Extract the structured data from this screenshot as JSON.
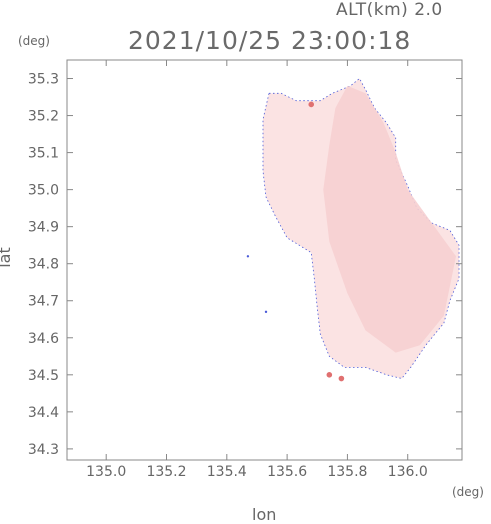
{
  "header": {
    "altitude_label": "ALT(km) 2.0",
    "timestamp": "2021/10/25 23:00:18"
  },
  "chart_data": {
    "type": "heatmap",
    "title": "2021/10/25 23:00:18",
    "subtitle": "ALT(km) 2.0",
    "xlabel": "lon",
    "ylabel": "lat",
    "x_unit": "(deg)",
    "y_unit": "(deg)",
    "xlim": [
      134.87,
      136.18
    ],
    "ylim": [
      34.27,
      35.35
    ],
    "x_ticks": [
      135.0,
      135.2,
      135.4,
      135.6,
      135.8,
      136.0
    ],
    "x_tick_labels": [
      "135.0",
      "135.2",
      "135.4",
      "135.6",
      "135.8",
      "136.0"
    ],
    "y_ticks": [
      34.3,
      34.4,
      34.5,
      34.6,
      34.7,
      34.8,
      34.9,
      35.0,
      35.1,
      35.2,
      35.3
    ],
    "y_tick_labels": [
      "34.3",
      "34.4",
      "34.5",
      "34.6",
      "34.7",
      "34.8",
      "34.9",
      "35.0",
      "35.1",
      "35.2",
      "35.3"
    ],
    "grid": false,
    "colors": {
      "fill_light": "#fbe3e3",
      "fill_mid": "#f6cfd0",
      "edge_blue": "#4a5ad8",
      "hot_spot": "#e07070"
    },
    "coverage_boundary": [
      [
        135.54,
        35.26
      ],
      [
        135.58,
        35.26
      ],
      [
        135.63,
        35.24
      ],
      [
        135.67,
        35.24
      ],
      [
        135.71,
        35.24
      ],
      [
        135.75,
        35.26
      ],
      [
        135.81,
        35.28
      ],
      [
        135.84,
        35.3
      ],
      [
        135.86,
        35.27
      ],
      [
        135.89,
        35.22
      ],
      [
        135.93,
        35.18
      ],
      [
        135.96,
        35.14
      ],
      [
        135.96,
        35.08
      ],
      [
        136.0,
        35.01
      ],
      [
        136.03,
        34.95
      ],
      [
        136.08,
        34.91
      ],
      [
        136.14,
        34.89
      ],
      [
        136.17,
        34.85
      ],
      [
        136.17,
        34.76
      ],
      [
        136.14,
        34.7
      ],
      [
        136.12,
        34.64
      ],
      [
        136.06,
        34.58
      ],
      [
        136.01,
        34.52
      ],
      [
        135.98,
        34.49
      ],
      [
        135.93,
        34.5
      ],
      [
        135.86,
        34.52
      ],
      [
        135.79,
        34.52
      ],
      [
        135.74,
        34.55
      ],
      [
        135.71,
        34.61
      ],
      [
        135.7,
        34.68
      ],
      [
        135.69,
        34.76
      ],
      [
        135.68,
        34.83
      ],
      [
        135.64,
        34.85
      ],
      [
        135.6,
        34.87
      ],
      [
        135.56,
        34.93
      ],
      [
        135.53,
        34.98
      ],
      [
        135.52,
        35.05
      ],
      [
        135.52,
        35.12
      ],
      [
        135.52,
        35.19
      ]
    ],
    "darker_region": [
      [
        135.8,
        35.28
      ],
      [
        135.86,
        35.26
      ],
      [
        135.92,
        35.18
      ],
      [
        135.96,
        35.1
      ],
      [
        136.0,
        35.0
      ],
      [
        136.08,
        34.91
      ],
      [
        136.16,
        34.82
      ],
      [
        136.12,
        34.66
      ],
      [
        136.04,
        34.58
      ],
      [
        135.96,
        34.56
      ],
      [
        135.86,
        34.62
      ],
      [
        135.8,
        34.72
      ],
      [
        135.74,
        34.86
      ],
      [
        135.72,
        35.0
      ],
      [
        135.74,
        35.12
      ],
      [
        135.76,
        35.22
      ]
    ],
    "hot_spots": [
      [
        135.68,
        35.23
      ],
      [
        135.74,
        34.5
      ],
      [
        135.78,
        34.49
      ]
    ],
    "outliers": [
      [
        135.53,
        34.67
      ],
      [
        135.47,
        34.82
      ]
    ]
  }
}
